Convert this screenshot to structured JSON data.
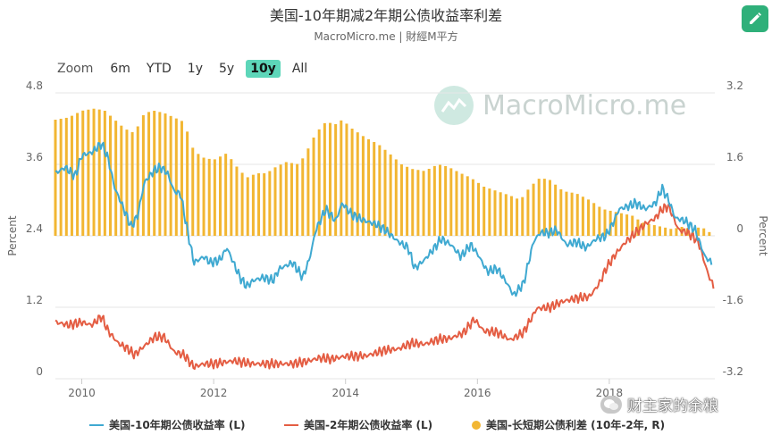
{
  "header": {
    "title": "美国-10年期减2年期公债收益率利差",
    "subtitle": "MacroMicro.me | 財經M平方"
  },
  "zoom": {
    "label": "Zoom",
    "buttons": [
      "6m",
      "YTD",
      "1y",
      "5y",
      "10y",
      "All"
    ],
    "selected": "10y"
  },
  "watermark": {
    "text": "MacroMicro.me"
  },
  "source_overlay": {
    "text": "财主家的余粮"
  },
  "colors": {
    "ten_year": "#3fa9d1",
    "two_year": "#e45d43",
    "spread": "#f2b632",
    "accent": "#2fb07a"
  },
  "chart_data": {
    "type": "line",
    "left_axis": {
      "title": "Percent",
      "ylim": [
        0,
        4.8
      ],
      "ticks": [
        "0",
        "1.2",
        "2.4",
        "3.6",
        "4.8"
      ]
    },
    "right_axis": {
      "title": "Percent",
      "ylim": [
        -3.2,
        3.2
      ],
      "ticks": [
        "-3.2",
        "-1.6",
        "0",
        "1.6",
        "3.2"
      ]
    },
    "x_ticks": [
      "2010",
      "2012",
      "2014",
      "2016",
      "2018"
    ],
    "x_range": [
      2009.6,
      2019.6
    ],
    "grid": true,
    "legend_position": "bottom",
    "series": [
      {
        "name": "美国-10年期公债收益率 (L)",
        "axis": "left",
        "type": "line",
        "points": [
          [
            2009.6,
            3.45
          ],
          [
            2009.75,
            3.55
          ],
          [
            2009.9,
            3.4
          ],
          [
            2010.0,
            3.75
          ],
          [
            2010.15,
            3.8
          ],
          [
            2010.3,
            3.95
          ],
          [
            2010.4,
            3.7
          ],
          [
            2010.5,
            3.2
          ],
          [
            2010.6,
            2.95
          ],
          [
            2010.75,
            2.55
          ],
          [
            2010.85,
            2.75
          ],
          [
            2010.95,
            3.3
          ],
          [
            2011.1,
            3.5
          ],
          [
            2011.2,
            3.55
          ],
          [
            2011.3,
            3.45
          ],
          [
            2011.4,
            3.15
          ],
          [
            2011.5,
            3.1
          ],
          [
            2011.6,
            2.5
          ],
          [
            2011.7,
            1.95
          ],
          [
            2011.85,
            2.05
          ],
          [
            2011.95,
            1.95
          ],
          [
            2012.1,
            2.0
          ],
          [
            2012.2,
            2.2
          ],
          [
            2012.3,
            1.95
          ],
          [
            2012.4,
            1.7
          ],
          [
            2012.5,
            1.55
          ],
          [
            2012.6,
            1.65
          ],
          [
            2012.75,
            1.7
          ],
          [
            2012.9,
            1.65
          ],
          [
            2013.0,
            1.85
          ],
          [
            2013.2,
            1.95
          ],
          [
            2013.35,
            1.7
          ],
          [
            2013.45,
            2.0
          ],
          [
            2013.55,
            2.5
          ],
          [
            2013.7,
            2.85
          ],
          [
            2013.85,
            2.65
          ],
          [
            2013.95,
            2.95
          ],
          [
            2014.1,
            2.75
          ],
          [
            2014.3,
            2.65
          ],
          [
            2014.45,
            2.6
          ],
          [
            2014.6,
            2.5
          ],
          [
            2014.8,
            2.3
          ],
          [
            2014.95,
            2.2
          ],
          [
            2015.05,
            1.85
          ],
          [
            2015.2,
            2.0
          ],
          [
            2015.35,
            2.2
          ],
          [
            2015.45,
            2.35
          ],
          [
            2015.6,
            2.25
          ],
          [
            2015.75,
            2.05
          ],
          [
            2015.9,
            2.25
          ],
          [
            2016.0,
            2.1
          ],
          [
            2016.15,
            1.8
          ],
          [
            2016.3,
            1.85
          ],
          [
            2016.45,
            1.6
          ],
          [
            2016.55,
            1.4
          ],
          [
            2016.7,
            1.6
          ],
          [
            2016.85,
            2.3
          ],
          [
            2016.95,
            2.45
          ],
          [
            2017.1,
            2.45
          ],
          [
            2017.2,
            2.5
          ],
          [
            2017.35,
            2.25
          ],
          [
            2017.5,
            2.3
          ],
          [
            2017.65,
            2.2
          ],
          [
            2017.8,
            2.35
          ],
          [
            2017.95,
            2.4
          ],
          [
            2018.05,
            2.6
          ],
          [
            2018.15,
            2.85
          ],
          [
            2018.3,
            2.9
          ],
          [
            2018.4,
            2.95
          ],
          [
            2018.55,
            2.85
          ],
          [
            2018.7,
            2.95
          ],
          [
            2018.8,
            3.2
          ],
          [
            2018.9,
            3.0
          ],
          [
            2019.0,
            2.7
          ],
          [
            2019.15,
            2.65
          ],
          [
            2019.3,
            2.5
          ],
          [
            2019.45,
            2.05
          ],
          [
            2019.55,
            1.95
          ]
        ]
      },
      {
        "name": "美国-2年期公债收益率 (L)",
        "axis": "left",
        "type": "line",
        "points": [
          [
            2009.6,
            0.95
          ],
          [
            2009.8,
            0.9
          ],
          [
            2010.0,
            0.95
          ],
          [
            2010.15,
            0.9
          ],
          [
            2010.3,
            1.05
          ],
          [
            2010.4,
            0.8
          ],
          [
            2010.55,
            0.6
          ],
          [
            2010.7,
            0.5
          ],
          [
            2010.8,
            0.4
          ],
          [
            2010.95,
            0.55
          ],
          [
            2011.1,
            0.7
          ],
          [
            2011.25,
            0.7
          ],
          [
            2011.4,
            0.45
          ],
          [
            2011.55,
            0.4
          ],
          [
            2011.7,
            0.2
          ],
          [
            2011.85,
            0.25
          ],
          [
            2012.0,
            0.25
          ],
          [
            2012.3,
            0.3
          ],
          [
            2012.6,
            0.25
          ],
          [
            2012.9,
            0.25
          ],
          [
            2013.2,
            0.25
          ],
          [
            2013.45,
            0.3
          ],
          [
            2013.6,
            0.35
          ],
          [
            2013.8,
            0.33
          ],
          [
            2014.0,
            0.38
          ],
          [
            2014.3,
            0.38
          ],
          [
            2014.6,
            0.48
          ],
          [
            2014.8,
            0.5
          ],
          [
            2015.0,
            0.6
          ],
          [
            2015.2,
            0.58
          ],
          [
            2015.4,
            0.66
          ],
          [
            2015.6,
            0.68
          ],
          [
            2015.8,
            0.78
          ],
          [
            2015.95,
            1.0
          ],
          [
            2016.1,
            0.8
          ],
          [
            2016.3,
            0.78
          ],
          [
            2016.5,
            0.65
          ],
          [
            2016.7,
            0.78
          ],
          [
            2016.9,
            1.18
          ],
          [
            2017.1,
            1.2
          ],
          [
            2017.3,
            1.3
          ],
          [
            2017.5,
            1.35
          ],
          [
            2017.7,
            1.38
          ],
          [
            2017.85,
            1.6
          ],
          [
            2017.95,
            1.85
          ],
          [
            2018.1,
            2.1
          ],
          [
            2018.25,
            2.3
          ],
          [
            2018.4,
            2.45
          ],
          [
            2018.55,
            2.6
          ],
          [
            2018.7,
            2.7
          ],
          [
            2018.8,
            2.85
          ],
          [
            2018.9,
            2.9
          ],
          [
            2019.05,
            2.5
          ],
          [
            2019.2,
            2.45
          ],
          [
            2019.35,
            2.3
          ],
          [
            2019.5,
            1.75
          ],
          [
            2019.58,
            1.55
          ]
        ]
      },
      {
        "name": "美国-长短期公债利差 (10年-2年, R)",
        "axis": "right",
        "type": "bar",
        "points": [
          [
            2009.6,
            2.6
          ],
          [
            2009.8,
            2.65
          ],
          [
            2010.0,
            2.8
          ],
          [
            2010.2,
            2.85
          ],
          [
            2010.35,
            2.8
          ],
          [
            2010.5,
            2.6
          ],
          [
            2010.65,
            2.4
          ],
          [
            2010.8,
            2.3
          ],
          [
            2010.95,
            2.75
          ],
          [
            2011.1,
            2.8
          ],
          [
            2011.25,
            2.75
          ],
          [
            2011.4,
            2.65
          ],
          [
            2011.55,
            2.55
          ],
          [
            2011.7,
            1.9
          ],
          [
            2011.85,
            1.75
          ],
          [
            2012.0,
            1.7
          ],
          [
            2012.2,
            1.85
          ],
          [
            2012.35,
            1.55
          ],
          [
            2012.5,
            1.3
          ],
          [
            2012.65,
            1.4
          ],
          [
            2012.8,
            1.4
          ],
          [
            2012.95,
            1.55
          ],
          [
            2013.1,
            1.65
          ],
          [
            2013.3,
            1.6
          ],
          [
            2013.45,
            2.0
          ],
          [
            2013.55,
            2.3
          ],
          [
            2013.7,
            2.55
          ],
          [
            2013.85,
            2.5
          ],
          [
            2013.95,
            2.6
          ],
          [
            2014.1,
            2.4
          ],
          [
            2014.3,
            2.2
          ],
          [
            2014.5,
            2.05
          ],
          [
            2014.7,
            1.8
          ],
          [
            2014.85,
            1.6
          ],
          [
            2015.0,
            1.5
          ],
          [
            2015.2,
            1.45
          ],
          [
            2015.4,
            1.6
          ],
          [
            2015.55,
            1.55
          ],
          [
            2015.75,
            1.4
          ],
          [
            2015.9,
            1.3
          ],
          [
            2016.1,
            1.1
          ],
          [
            2016.3,
            1.0
          ],
          [
            2016.5,
            0.9
          ],
          [
            2016.65,
            0.8
          ],
          [
            2016.8,
            1.1
          ],
          [
            2016.95,
            1.3
          ],
          [
            2017.1,
            1.25
          ],
          [
            2017.3,
            1.0
          ],
          [
            2017.5,
            0.95
          ],
          [
            2017.7,
            0.8
          ],
          [
            2017.9,
            0.6
          ],
          [
            2018.05,
            0.55
          ],
          [
            2018.2,
            0.5
          ],
          [
            2018.35,
            0.45
          ],
          [
            2018.5,
            0.3
          ],
          [
            2018.65,
            0.25
          ],
          [
            2018.8,
            0.2
          ],
          [
            2018.95,
            0.15
          ],
          [
            2019.1,
            0.2
          ],
          [
            2019.25,
            0.15
          ],
          [
            2019.4,
            0.2
          ],
          [
            2019.5,
            0.1
          ],
          [
            2019.55,
            0.05
          ]
        ]
      }
    ]
  }
}
